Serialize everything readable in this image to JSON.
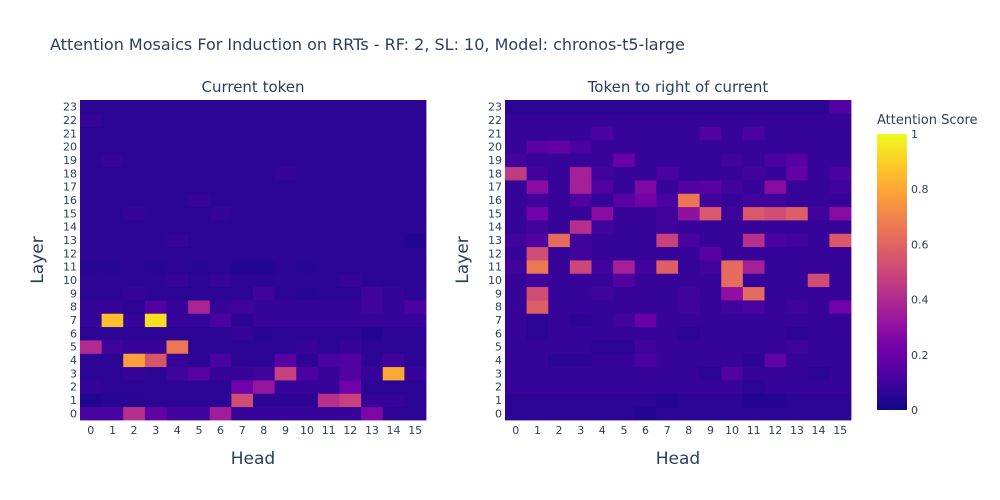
{
  "chart_data": {
    "type": "heatmap",
    "title": "Attention Mosaics For Induction on RRTs - RF: 2, SL: 10, Model: chronos-t5-large",
    "xlabel": "Head",
    "ylabel": "Layer",
    "x_ticks": [
      "0",
      "1",
      "2",
      "3",
      "4",
      "5",
      "6",
      "7",
      "8",
      "9",
      "10",
      "11",
      "12",
      "13",
      "14",
      "15"
    ],
    "y_ticks": [
      "0",
      "1",
      "2",
      "3",
      "4",
      "5",
      "6",
      "7",
      "8",
      "9",
      "10",
      "11",
      "12",
      "13",
      "14",
      "15",
      "16",
      "17",
      "18",
      "19",
      "20",
      "21",
      "22",
      "23"
    ],
    "colorbar": {
      "title": "Attention Score",
      "range": [
        0,
        1
      ],
      "ticks": [
        "0",
        "0.2",
        "0.4",
        "0.6",
        "0.8",
        "1"
      ]
    },
    "colorscale": [
      "#0d0887",
      "#46039f",
      "#7201a8",
      "#9c179e",
      "#bd3786",
      "#d8576b",
      "#ed7953",
      "#fb9f3a",
      "#fdca26",
      "#f0f921"
    ],
    "panels": [
      {
        "subtitle": "Current token",
        "z": [
          [
            0.12,
            0.12,
            0.42,
            0.18,
            0.1,
            0.1,
            0.35,
            0.08,
            0.08,
            0.08,
            0.08,
            0.08,
            0.08,
            0.25,
            0.06,
            0.06
          ],
          [
            0.04,
            0.05,
            0.05,
            0.06,
            0.06,
            0.06,
            0.06,
            0.52,
            0.06,
            0.06,
            0.06,
            0.42,
            0.48,
            0.08,
            0.08,
            0.06
          ],
          [
            0.08,
            0.06,
            0.06,
            0.06,
            0.06,
            0.06,
            0.06,
            0.22,
            0.32,
            0.08,
            0.08,
            0.08,
            0.22,
            0.06,
            0.06,
            0.06
          ],
          [
            0.06,
            0.06,
            0.08,
            0.06,
            0.1,
            0.16,
            0.08,
            0.08,
            0.1,
            0.48,
            0.12,
            0.08,
            0.14,
            0.08,
            0.8,
            0.08
          ],
          [
            0.06,
            0.06,
            0.78,
            0.55,
            0.08,
            0.06,
            0.12,
            0.06,
            0.06,
            0.16,
            0.06,
            0.12,
            0.14,
            0.06,
            0.1,
            0.06
          ],
          [
            0.4,
            0.1,
            0.08,
            0.08,
            0.66,
            0.06,
            0.06,
            0.06,
            0.06,
            0.06,
            0.08,
            0.06,
            0.08,
            0.06,
            0.06,
            0.06
          ],
          [
            0.06,
            0.06,
            0.06,
            0.06,
            0.06,
            0.06,
            0.06,
            0.08,
            0.05,
            0.06,
            0.06,
            0.06,
            0.06,
            0.04,
            0.06,
            0.06
          ],
          [
            0.08,
            0.86,
            0.08,
            0.94,
            0.08,
            0.08,
            0.12,
            0.06,
            0.08,
            0.08,
            0.08,
            0.08,
            0.08,
            0.08,
            0.08,
            0.08
          ],
          [
            0.08,
            0.08,
            0.06,
            0.14,
            0.08,
            0.38,
            0.08,
            0.1,
            0.08,
            0.08,
            0.08,
            0.08,
            0.08,
            0.1,
            0.08,
            0.12
          ],
          [
            0.06,
            0.06,
            0.08,
            0.06,
            0.06,
            0.06,
            0.06,
            0.06,
            0.1,
            0.06,
            0.05,
            0.06,
            0.06,
            0.1,
            0.08,
            0.06
          ],
          [
            0.06,
            0.06,
            0.06,
            0.06,
            0.08,
            0.06,
            0.08,
            0.06,
            0.06,
            0.06,
            0.06,
            0.06,
            0.08,
            0.06,
            0.06,
            0.06
          ],
          [
            0.05,
            0.05,
            0.06,
            0.05,
            0.06,
            0.05,
            0.06,
            0.04,
            0.04,
            0.06,
            0.05,
            0.06,
            0.06,
            0.06,
            0.06,
            0.06
          ],
          [
            0.06,
            0.06,
            0.06,
            0.06,
            0.06,
            0.06,
            0.06,
            0.06,
            0.06,
            0.06,
            0.06,
            0.06,
            0.06,
            0.06,
            0.06,
            0.06
          ],
          [
            0.06,
            0.06,
            0.06,
            0.06,
            0.08,
            0.06,
            0.06,
            0.06,
            0.06,
            0.06,
            0.06,
            0.06,
            0.06,
            0.06,
            0.06,
            0.04
          ],
          [
            0.06,
            0.06,
            0.06,
            0.06,
            0.06,
            0.06,
            0.06,
            0.06,
            0.06,
            0.06,
            0.06,
            0.06,
            0.06,
            0.06,
            0.06,
            0.06
          ],
          [
            0.06,
            0.06,
            0.08,
            0.06,
            0.06,
            0.06,
            0.08,
            0.06,
            0.06,
            0.06,
            0.06,
            0.06,
            0.06,
            0.06,
            0.06,
            0.06
          ],
          [
            0.06,
            0.06,
            0.06,
            0.06,
            0.06,
            0.08,
            0.06,
            0.06,
            0.06,
            0.06,
            0.06,
            0.06,
            0.06,
            0.06,
            0.06,
            0.06
          ],
          [
            0.06,
            0.06,
            0.06,
            0.06,
            0.06,
            0.06,
            0.06,
            0.06,
            0.06,
            0.06,
            0.06,
            0.06,
            0.06,
            0.06,
            0.06,
            0.06
          ],
          [
            0.06,
            0.06,
            0.06,
            0.06,
            0.06,
            0.06,
            0.06,
            0.06,
            0.06,
            0.08,
            0.06,
            0.06,
            0.06,
            0.06,
            0.06,
            0.06
          ],
          [
            0.06,
            0.08,
            0.06,
            0.06,
            0.06,
            0.06,
            0.06,
            0.06,
            0.06,
            0.06,
            0.06,
            0.06,
            0.06,
            0.06,
            0.06,
            0.06
          ],
          [
            0.06,
            0.06,
            0.06,
            0.06,
            0.06,
            0.06,
            0.06,
            0.06,
            0.06,
            0.06,
            0.06,
            0.06,
            0.06,
            0.06,
            0.06,
            0.06
          ],
          [
            0.06,
            0.06,
            0.06,
            0.06,
            0.06,
            0.06,
            0.06,
            0.06,
            0.06,
            0.06,
            0.06,
            0.06,
            0.06,
            0.06,
            0.06,
            0.06
          ],
          [
            0.08,
            0.06,
            0.06,
            0.06,
            0.06,
            0.06,
            0.06,
            0.06,
            0.06,
            0.06,
            0.06,
            0.06,
            0.06,
            0.06,
            0.06,
            0.06
          ],
          [
            0.06,
            0.06,
            0.06,
            0.06,
            0.06,
            0.06,
            0.06,
            0.06,
            0.06,
            0.06,
            0.06,
            0.06,
            0.06,
            0.06,
            0.06,
            0.06
          ]
        ]
      },
      {
        "subtitle": "Token to right of current",
        "z": [
          [
            0.06,
            0.06,
            0.06,
            0.06,
            0.06,
            0.06,
            0.04,
            0.06,
            0.06,
            0.06,
            0.06,
            0.06,
            0.06,
            0.06,
            0.06,
            0.06
          ],
          [
            0.06,
            0.06,
            0.06,
            0.06,
            0.06,
            0.06,
            0.06,
            0.04,
            0.06,
            0.06,
            0.06,
            0.04,
            0.04,
            0.06,
            0.06,
            0.06
          ],
          [
            0.08,
            0.08,
            0.08,
            0.08,
            0.08,
            0.08,
            0.08,
            0.08,
            0.08,
            0.08,
            0.08,
            0.06,
            0.08,
            0.08,
            0.08,
            0.08
          ],
          [
            0.08,
            0.08,
            0.08,
            0.08,
            0.08,
            0.08,
            0.08,
            0.08,
            0.08,
            0.06,
            0.14,
            0.08,
            0.08,
            0.08,
            0.06,
            0.08
          ],
          [
            0.08,
            0.08,
            0.06,
            0.06,
            0.08,
            0.08,
            0.12,
            0.08,
            0.08,
            0.08,
            0.08,
            0.06,
            0.18,
            0.08,
            0.08,
            0.08
          ],
          [
            0.08,
            0.08,
            0.08,
            0.08,
            0.06,
            0.06,
            0.1,
            0.08,
            0.08,
            0.08,
            0.08,
            0.08,
            0.08,
            0.1,
            0.08,
            0.08
          ],
          [
            0.08,
            0.06,
            0.08,
            0.08,
            0.08,
            0.08,
            0.08,
            0.08,
            0.06,
            0.08,
            0.08,
            0.08,
            0.08,
            0.06,
            0.08,
            0.08
          ],
          [
            0.08,
            0.06,
            0.08,
            0.06,
            0.08,
            0.1,
            0.2,
            0.08,
            0.08,
            0.08,
            0.08,
            0.08,
            0.08,
            0.08,
            0.08,
            0.08
          ],
          [
            0.08,
            0.58,
            0.08,
            0.08,
            0.08,
            0.08,
            0.08,
            0.08,
            0.1,
            0.08,
            0.1,
            0.12,
            0.08,
            0.1,
            0.08,
            0.22
          ],
          [
            0.08,
            0.52,
            0.08,
            0.08,
            0.1,
            0.08,
            0.08,
            0.08,
            0.1,
            0.08,
            0.3,
            0.62,
            0.08,
            0.08,
            0.08,
            0.08
          ],
          [
            0.08,
            0.1,
            0.08,
            0.08,
            0.08,
            0.14,
            0.08,
            0.08,
            0.08,
            0.08,
            0.62,
            0.08,
            0.08,
            0.08,
            0.52,
            0.08
          ],
          [
            0.1,
            0.66,
            0.08,
            0.5,
            0.1,
            0.36,
            0.1,
            0.58,
            0.08,
            0.1,
            0.62,
            0.36,
            0.08,
            0.08,
            0.08,
            0.08
          ],
          [
            0.08,
            0.52,
            0.08,
            0.1,
            0.08,
            0.08,
            0.08,
            0.08,
            0.08,
            0.16,
            0.08,
            0.08,
            0.08,
            0.08,
            0.08,
            0.08
          ],
          [
            0.1,
            0.14,
            0.62,
            0.1,
            0.08,
            0.08,
            0.08,
            0.48,
            0.12,
            0.08,
            0.08,
            0.42,
            0.12,
            0.1,
            0.08,
            0.56
          ],
          [
            0.08,
            0.1,
            0.08,
            0.42,
            0.1,
            0.08,
            0.08,
            0.1,
            0.08,
            0.08,
            0.08,
            0.08,
            0.08,
            0.08,
            0.08,
            0.08
          ],
          [
            0.08,
            0.22,
            0.08,
            0.08,
            0.28,
            0.08,
            0.08,
            0.1,
            0.3,
            0.56,
            0.1,
            0.56,
            0.52,
            0.58,
            0.1,
            0.28
          ],
          [
            0.08,
            0.1,
            0.08,
            0.14,
            0.08,
            0.16,
            0.22,
            0.12,
            0.66,
            0.1,
            0.08,
            0.1,
            0.1,
            0.08,
            0.08,
            0.08
          ],
          [
            0.08,
            0.28,
            0.08,
            0.36,
            0.14,
            0.08,
            0.26,
            0.08,
            0.14,
            0.16,
            0.1,
            0.08,
            0.28,
            0.08,
            0.08,
            0.1
          ],
          [
            0.46,
            0.1,
            0.08,
            0.36,
            0.1,
            0.08,
            0.08,
            0.12,
            0.08,
            0.08,
            0.08,
            0.1,
            0.08,
            0.18,
            0.08,
            0.12
          ],
          [
            0.1,
            0.08,
            0.08,
            0.08,
            0.08,
            0.2,
            0.08,
            0.08,
            0.08,
            0.08,
            0.1,
            0.08,
            0.12,
            0.16,
            0.08,
            0.08
          ],
          [
            0.08,
            0.16,
            0.18,
            0.12,
            0.08,
            0.08,
            0.08,
            0.08,
            0.08,
            0.08,
            0.08,
            0.08,
            0.08,
            0.08,
            0.08,
            0.08
          ],
          [
            0.08,
            0.08,
            0.08,
            0.08,
            0.12,
            0.08,
            0.08,
            0.08,
            0.08,
            0.14,
            0.08,
            0.12,
            0.08,
            0.08,
            0.08,
            0.08
          ],
          [
            0.08,
            0.08,
            0.08,
            0.08,
            0.08,
            0.08,
            0.08,
            0.08,
            0.08,
            0.08,
            0.08,
            0.08,
            0.08,
            0.08,
            0.08,
            0.08
          ],
          [
            0.06,
            0.06,
            0.06,
            0.06,
            0.06,
            0.06,
            0.06,
            0.06,
            0.06,
            0.06,
            0.06,
            0.06,
            0.06,
            0.06,
            0.06,
            0.14
          ]
        ]
      }
    ]
  }
}
